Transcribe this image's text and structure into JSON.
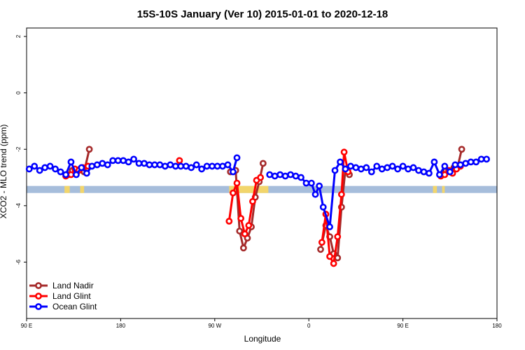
{
  "chart_data": {
    "type": "line",
    "title": "15S-10S January (Ver 10)   2015-01-01 to 2020-12-18",
    "xlabel": "Longitude",
    "ylabel": "XCO2 - MLO trend (ppm)",
    "xlim": [
      0,
      360
    ],
    "ylim": [
      -8,
      2.3
    ],
    "x_ticks": [
      {
        "value": 0,
        "label": "90 E"
      },
      {
        "value": 72,
        "label": "180"
      },
      {
        "value": 144,
        "label": "90 W"
      },
      {
        "value": 216,
        "label": "0"
      },
      {
        "value": 288,
        "label": "90 E"
      },
      {
        "value": 360,
        "label": "180"
      }
    ],
    "y_ticks": [
      {
        "value": 2,
        "label": "2"
      },
      {
        "value": 0,
        "label": "0"
      },
      {
        "value": -2,
        "label": "-2"
      },
      {
        "value": -4,
        "label": "-4"
      },
      {
        "value": -6,
        "label": "-6"
      }
    ],
    "grid": false,
    "legend_position": "bottom-left",
    "background_band": {
      "y_from": -3.55,
      "y_to": -3.3,
      "color": "#a6bddb",
      "land_color": "#f2d56b"
    },
    "land_segments": [
      {
        "x_from": 29,
        "x_to": 33
      },
      {
        "x_from": 41,
        "x_to": 44
      },
      {
        "x_from": 155,
        "x_to": 185
      },
      {
        "x_from": 311,
        "x_to": 314
      },
      {
        "x_from": 318,
        "x_to": 320
      }
    ],
    "series": [
      {
        "name": "Land Nadir",
        "color": "#a52a2a",
        "segments": [
          [
            [
              32,
              -2.9
            ],
            [
              35,
              -2.75
            ],
            [
              38,
              -2.85
            ],
            [
              41,
              -2.7
            ],
            [
              44,
              -2.8
            ],
            [
              48,
              -2.0
            ]
          ],
          [
            [
              156,
              -2.8
            ],
            [
              160,
              -2.75
            ],
            [
              163,
              -4.9
            ],
            [
              166,
              -5.5
            ],
            [
              169,
              -5.15
            ],
            [
              172,
              -4.75
            ],
            [
              175,
              -3.7
            ],
            [
              178,
              -3.15
            ],
            [
              181,
              -2.5
            ]
          ],
          [
            [
              225,
              -5.55
            ],
            [
              229,
              -4.7
            ],
            [
              232,
              -5.1
            ],
            [
              235,
              -5.7
            ],
            [
              238,
              -5.85
            ],
            [
              241,
              -4.05
            ],
            [
              244,
              -2.7
            ],
            [
              247,
              -2.9
            ]
          ],
          [
            [
              318,
              -2.9
            ],
            [
              321,
              -2.75
            ],
            [
              324,
              -2.8
            ],
            [
              327,
              -2.65
            ],
            [
              330,
              -2.6
            ],
            [
              333,
              -2.0
            ]
          ]
        ]
      },
      {
        "name": "Land Glint",
        "color": "#ff0000",
        "segments": [
          [
            [
              30,
              -2.95
            ],
            [
              34,
              -2.9
            ],
            [
              37,
              -2.7
            ],
            [
              40,
              -2.75
            ],
            [
              43,
              -2.65
            ],
            [
              47,
              -2.6
            ]
          ],
          [
            [
              117,
              -2.4
            ]
          ],
          [
            [
              155,
              -4.55
            ],
            [
              158,
              -3.55
            ],
            [
              161,
              -3.2
            ],
            [
              164,
              -4.45
            ],
            [
              167,
              -5.0
            ],
            [
              170,
              -4.7
            ],
            [
              173,
              -3.85
            ],
            [
              176,
              -3.1
            ],
            [
              179,
              -3.0
            ]
          ],
          [
            [
              226,
              -5.3
            ],
            [
              229,
              -4.3
            ],
            [
              232,
              -5.8
            ],
            [
              235,
              -6.05
            ],
            [
              238,
              -5.1
            ],
            [
              241,
              -3.6
            ],
            [
              243,
              -2.1
            ],
            [
              246,
              -2.8
            ]
          ],
          [
            [
              317,
              -2.95
            ],
            [
              320,
              -2.9
            ],
            [
              323,
              -2.75
            ],
            [
              326,
              -2.85
            ],
            [
              329,
              -2.7
            ],
            [
              332,
              -2.6
            ]
          ]
        ]
      },
      {
        "name": "Ocean Glint",
        "color": "#0000ff",
        "segments": [
          [
            [
              2,
              -2.7
            ],
            [
              6,
              -2.6
            ],
            [
              10,
              -2.75
            ],
            [
              14,
              -2.65
            ],
            [
              18,
              -2.6
            ],
            [
              22,
              -2.7
            ],
            [
              26,
              -2.8
            ],
            [
              30,
              -2.9
            ],
            [
              34,
              -2.45
            ],
            [
              38,
              -2.9
            ],
            [
              42,
              -2.65
            ],
            [
              46,
              -2.85
            ],
            [
              50,
              -2.6
            ],
            [
              54,
              -2.55
            ],
            [
              58,
              -2.5
            ],
            [
              62,
              -2.55
            ],
            [
              66,
              -2.4
            ],
            [
              70,
              -2.4
            ],
            [
              74,
              -2.4
            ],
            [
              78,
              -2.45
            ],
            [
              82,
              -2.35
            ],
            [
              86,
              -2.5
            ],
            [
              90,
              -2.5
            ],
            [
              94,
              -2.55
            ],
            [
              98,
              -2.55
            ],
            [
              102,
              -2.55
            ],
            [
              106,
              -2.6
            ],
            [
              110,
              -2.55
            ],
            [
              114,
              -2.6
            ],
            [
              118,
              -2.6
            ],
            [
              122,
              -2.6
            ],
            [
              126,
              -2.65
            ],
            [
              130,
              -2.55
            ],
            [
              134,
              -2.7
            ],
            [
              138,
              -2.6
            ],
            [
              142,
              -2.6
            ],
            [
              146,
              -2.6
            ],
            [
              150,
              -2.6
            ],
            [
              154,
              -2.55
            ],
            [
              158,
              -2.8
            ],
            [
              161,
              -2.3
            ]
          ],
          [
            [
              186,
              -2.9
            ],
            [
              190,
              -2.95
            ],
            [
              194,
              -2.9
            ],
            [
              198,
              -2.95
            ],
            [
              202,
              -2.9
            ],
            [
              206,
              -2.95
            ],
            [
              210,
              -3.0
            ],
            [
              214,
              -3.2
            ],
            [
              218,
              -3.2
            ],
            [
              221,
              -3.6
            ],
            [
              224,
              -3.3
            ],
            [
              227,
              -4.05
            ],
            [
              232,
              -4.75
            ],
            [
              236,
              -2.75
            ],
            [
              240,
              -2.45
            ],
            [
              244,
              -2.7
            ],
            [
              248,
              -2.6
            ],
            [
              252,
              -2.65
            ],
            [
              256,
              -2.7
            ],
            [
              260,
              -2.65
            ],
            [
              264,
              -2.8
            ],
            [
              268,
              -2.6
            ],
            [
              272,
              -2.7
            ],
            [
              276,
              -2.65
            ],
            [
              280,
              -2.6
            ],
            [
              284,
              -2.7
            ],
            [
              288,
              -2.6
            ],
            [
              292,
              -2.7
            ],
            [
              296,
              -2.65
            ],
            [
              300,
              -2.75
            ],
            [
              304,
              -2.8
            ],
            [
              308,
              -2.85
            ],
            [
              312,
              -2.45
            ],
            [
              316,
              -2.9
            ],
            [
              320,
              -2.6
            ],
            [
              324,
              -2.8
            ],
            [
              328,
              -2.55
            ],
            [
              332,
              -2.55
            ],
            [
              336,
              -2.5
            ],
            [
              340,
              -2.45
            ],
            [
              344,
              -2.45
            ],
            [
              348,
              -2.35
            ],
            [
              352,
              -2.35
            ]
          ]
        ]
      }
    ]
  }
}
